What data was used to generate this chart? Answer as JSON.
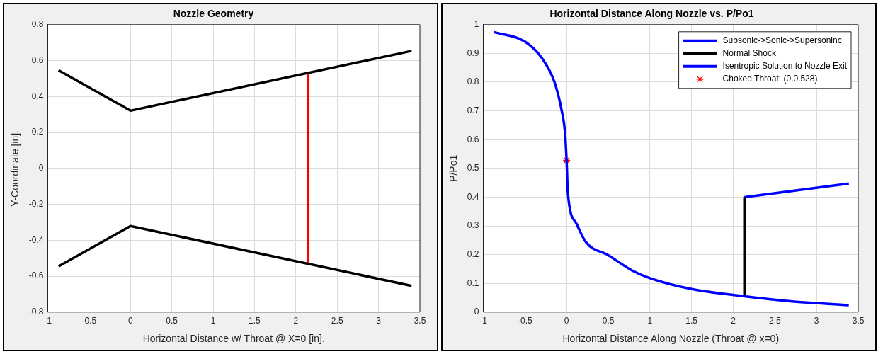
{
  "chart_data": [
    {
      "type": "line",
      "title": "Nozzle Geometry",
      "xlabel": "Horizontal Distance w/ Throat @ X=0 [in].",
      "ylabel": "Y-Coordinate [in].",
      "xlim": [
        -1,
        3.5
      ],
      "ylim": [
        -0.8,
        0.8
      ],
      "xticks": [
        -1,
        -0.5,
        0,
        0.5,
        1,
        1.5,
        2,
        2.5,
        3,
        3.5
      ],
      "yticks": [
        -0.8,
        -0.6,
        -0.4,
        -0.2,
        0,
        0.2,
        0.4,
        0.6,
        0.8
      ],
      "grid": true,
      "legend": false,
      "series": [
        {
          "color": "#000000",
          "x": [
            -0.87,
            0,
            3.4
          ],
          "values": [
            0.546,
            0.321,
            0.654
          ]
        },
        {
          "color": "#000000",
          "x": [
            -0.87,
            0,
            3.4
          ],
          "values": [
            -0.546,
            -0.321,
            -0.654
          ]
        },
        {
          "color": "#ff0000",
          "x": [
            2.15,
            2.15
          ],
          "values": [
            0.53,
            -0.53
          ]
        }
      ]
    },
    {
      "type": "line",
      "title": "Horizontal Distance Along Nozzle vs. P/Po1",
      "xlabel": "Horizontal Distance Along Nozzle (Throat @ x=0)",
      "ylabel": "P/Po1",
      "xlim": [
        -1,
        3.5
      ],
      "ylim": [
        0,
        1
      ],
      "xticks": [
        -1,
        -0.5,
        0,
        0.5,
        1,
        1.5,
        2,
        2.5,
        3,
        3.5
      ],
      "yticks": [
        0,
        0.1,
        0.2,
        0.3,
        0.4,
        0.5,
        0.6,
        0.7,
        0.8,
        0.9,
        1
      ],
      "grid": true,
      "legend": "top right",
      "series": [
        {
          "name": "Subsonic->Sonic->Supersoninc",
          "color": "#0000ff",
          "x": [
            -0.87,
            -0.5,
            -0.29,
            -0.145,
            -0.058,
            -0.02,
            0,
            0.015,
            0.116,
            0.233,
            0.5,
            0.785,
            1,
            1.5,
            2.134,
            2.64,
            3.387
          ],
          "values": [
            0.974,
            0.941,
            0.881,
            0.8,
            0.7,
            0.628,
            0.528,
            0.415,
            0.309,
            0.243,
            0.198,
            0.145,
            0.118,
            0.08,
            0.055,
            0.039,
            0.024
          ]
        },
        {
          "name": "Normal Shock",
          "color": "#000000",
          "x": [
            2.134,
            2.134
          ],
          "values": [
            0.055,
            0.4
          ]
        },
        {
          "name": "Isentropic Solution to Nozzle Exit",
          "color": "#0000ff",
          "x": [
            2.134,
            3.387
          ],
          "values": [
            0.4,
            0.447
          ]
        },
        {
          "name": "Choked Throat: (0,0.528)",
          "type": "scatter",
          "marker": "cross",
          "color": "#ff0000",
          "x": [
            0
          ],
          "values": [
            0.528
          ]
        }
      ]
    }
  ]
}
